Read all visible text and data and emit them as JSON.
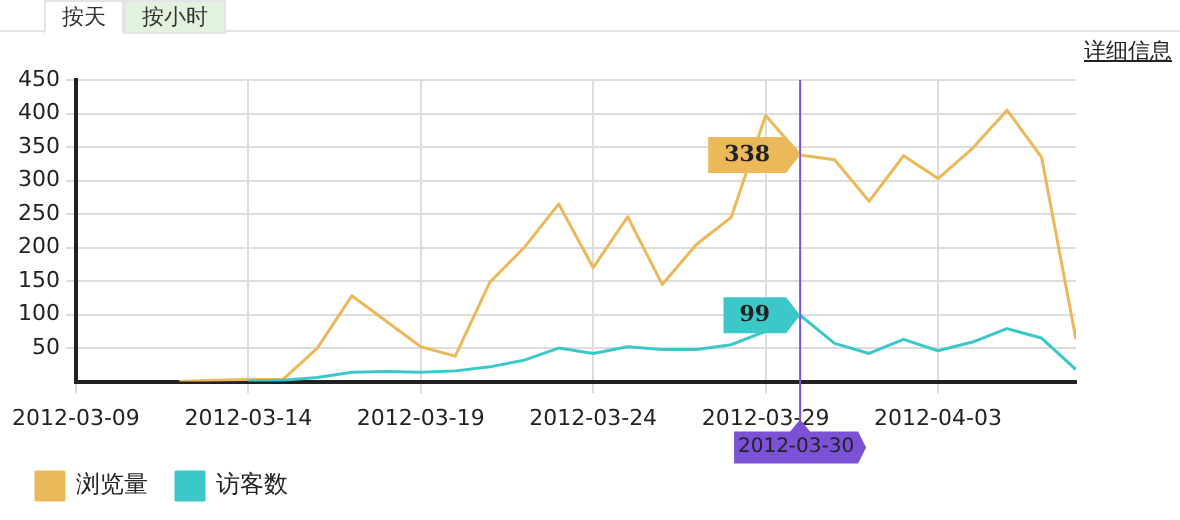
{
  "chart_data": {
    "type": "line",
    "x": [
      "2012-03-12",
      "2012-03-13",
      "2012-03-14",
      "2012-03-15",
      "2012-03-16",
      "2012-03-17",
      "2012-03-18",
      "2012-03-19",
      "2012-03-20",
      "2012-03-21",
      "2012-03-22",
      "2012-03-23",
      "2012-03-24",
      "2012-03-25",
      "2012-03-26",
      "2012-03-27",
      "2012-03-28",
      "2012-03-29",
      "2012-03-30",
      "2012-03-31",
      "2012-04-01",
      "2012-04-02",
      "2012-04-03",
      "2012-04-04",
      "2012-04-05",
      "2012-04-06",
      "2012-04-07"
    ],
    "series": [
      {
        "name": "浏览量",
        "color": "#ebb85a",
        "values": [
          0,
          2,
          3,
          3,
          50,
          128,
          90,
          52,
          38,
          148,
          200,
          265,
          170,
          246,
          145,
          205,
          245,
          397,
          338,
          331,
          269,
          337,
          303,
          348,
          405,
          335,
          63
        ]
      },
      {
        "name": "访客数",
        "color": "#3cc8c8",
        "values": [
          null,
          null,
          1,
          2,
          6,
          14,
          15,
          14,
          16,
          22,
          32,
          50,
          42,
          52,
          48,
          48,
          55,
          75,
          99,
          57,
          42,
          63,
          46,
          59,
          79,
          65,
          18
        ]
      }
    ],
    "xlim": [
      "2012-03-09",
      "2012-04-07"
    ],
    "xticks": [
      "2012-03-09",
      "2012-03-14",
      "2012-03-19",
      "2012-03-24",
      "2012-03-29",
      "2012-04-03"
    ],
    "ylim": [
      0,
      450
    ],
    "yticks": [
      50,
      100,
      150,
      200,
      250,
      300,
      350,
      400,
      450
    ],
    "grid": true,
    "legend": "bottom left",
    "marker": "none",
    "line_style": "solid",
    "ref_lines": [
      {
        "axis": "x",
        "value": "2012-03-30",
        "label": "2012-03-30",
        "color": "#7b52d6"
      }
    ],
    "annotations": [
      {
        "text": "338",
        "x": "2012-03-30",
        "y": 338
      },
      {
        "text": "99",
        "x": "2012-03-30",
        "y": 99
      },
      "按天",
      "按小时",
      "详细信息"
    ]
  }
}
